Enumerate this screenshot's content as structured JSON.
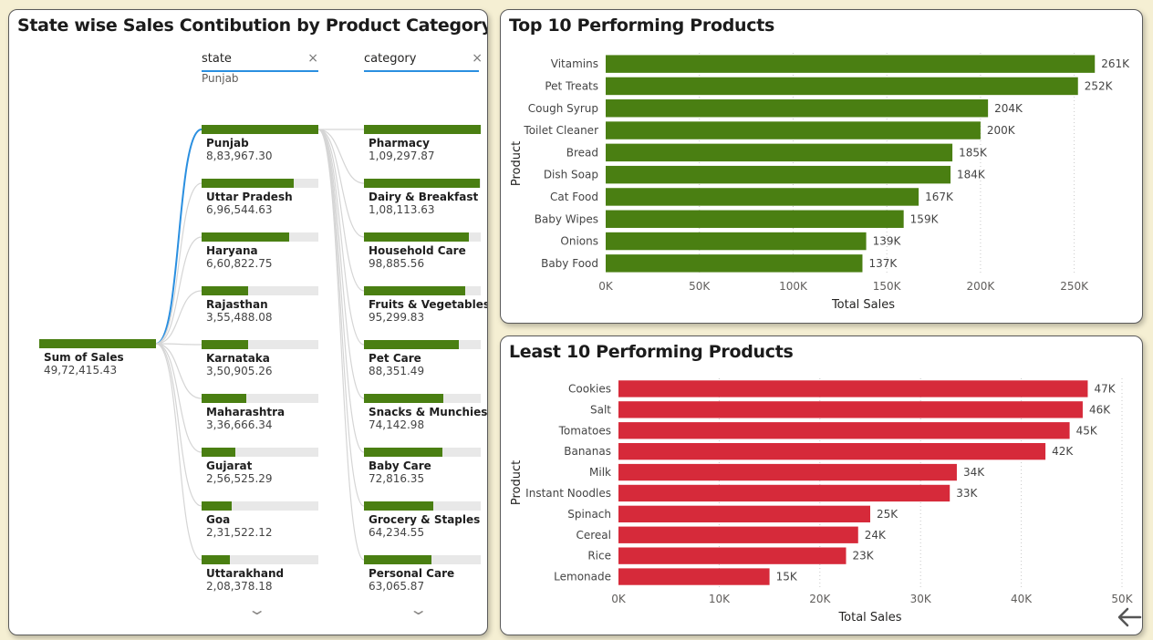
{
  "colors": {
    "top_bar": "#4a7f12",
    "least_bar": "#d62a3a",
    "decomp_bar": "#4a7f12",
    "link_active": "#2a8fe0",
    "link_inactive": "#d5d5d5"
  },
  "decomp": {
    "title": "State wise Sales Contibution by Product Category",
    "root": {
      "label": "Sum of Sales",
      "value": "49,72,415.43",
      "fraction": 1.0
    },
    "state_header": "state",
    "state_selected": "Punjab",
    "category_header": "category",
    "close_icon": "close-icon",
    "expand_icon": "chevron-down-icon",
    "states": [
      {
        "label": "Punjab",
        "value": "8,83,967.30",
        "fraction": 1.0
      },
      {
        "label": "Uttar Pradesh",
        "value": "6,96,544.63",
        "fraction": 0.79
      },
      {
        "label": "Haryana",
        "value": "6,60,822.75",
        "fraction": 0.75
      },
      {
        "label": "Rajasthan",
        "value": "3,55,488.08",
        "fraction": 0.4
      },
      {
        "label": "Karnataka",
        "value": "3,50,905.26",
        "fraction": 0.4
      },
      {
        "label": "Maharashtra",
        "value": "3,36,666.34",
        "fraction": 0.38
      },
      {
        "label": "Gujarat",
        "value": "2,56,525.29",
        "fraction": 0.29
      },
      {
        "label": "Goa",
        "value": "2,31,522.12",
        "fraction": 0.26
      },
      {
        "label": "Uttarakhand",
        "value": "2,08,378.18",
        "fraction": 0.24
      }
    ],
    "categories": [
      {
        "label": "Pharmacy",
        "value": "1,09,297.87",
        "fraction": 1.0
      },
      {
        "label": "Dairy & Breakfast",
        "value": "1,08,113.63",
        "fraction": 0.99
      },
      {
        "label": "Household Care",
        "value": "98,885.56",
        "fraction": 0.9
      },
      {
        "label": "Fruits & Vegetables",
        "value": "95,299.83",
        "fraction": 0.87
      },
      {
        "label": "Pet Care",
        "value": "88,351.49",
        "fraction": 0.81
      },
      {
        "label": "Snacks & Munchies",
        "value": "74,142.98",
        "fraction": 0.68
      },
      {
        "label": "Baby Care",
        "value": "72,816.35",
        "fraction": 0.67
      },
      {
        "label": "Grocery & Staples",
        "value": "64,234.55",
        "fraction": 0.59
      },
      {
        "label": "Personal Care",
        "value": "63,065.87",
        "fraction": 0.58
      }
    ]
  },
  "chart_data": [
    {
      "type": "bar",
      "orientation": "horizontal",
      "title": "Top 10 Performing Products",
      "xlabel": "Total Sales",
      "ylabel": "Product",
      "xlim": [
        0,
        275000
      ],
      "x_ticks": [
        0,
        50000,
        100000,
        150000,
        200000,
        250000
      ],
      "x_tick_labels": [
        "0K",
        "50K",
        "100K",
        "150K",
        "200K",
        "250K"
      ],
      "grid": "vertical dotted",
      "color": "#4a7f12",
      "categories": [
        "Vitamins",
        "Pet Treats",
        "Cough Syrup",
        "Toilet Cleaner",
        "Bread",
        "Dish Soap",
        "Cat Food",
        "Baby Wipes",
        "Onions",
        "Baby Food"
      ],
      "values": [
        261000,
        252000,
        204000,
        200000,
        185000,
        184000,
        167000,
        159000,
        139000,
        137000
      ],
      "data_labels": [
        "261K",
        "252K",
        "204K",
        "200K",
        "185K",
        "184K",
        "167K",
        "159K",
        "139K",
        "137K"
      ]
    },
    {
      "type": "bar",
      "orientation": "horizontal",
      "title": "Least 10 Performing Products",
      "xlabel": "Total Sales",
      "ylabel": "Product",
      "xlim": [
        0,
        50000
      ],
      "x_ticks": [
        0,
        10000,
        20000,
        30000,
        40000,
        50000
      ],
      "x_tick_labels": [
        "0K",
        "10K",
        "20K",
        "30K",
        "40K",
        "50K"
      ],
      "grid": "vertical dotted",
      "color": "#d62a3a",
      "categories": [
        "Cookies",
        "Salt",
        "Tomatoes",
        "Bananas",
        "Milk",
        "Instant Noodles",
        "Spinach",
        "Cereal",
        "Rice",
        "Lemonade"
      ],
      "values": [
        46600,
        46100,
        44800,
        42400,
        33600,
        32900,
        25000,
        23800,
        22600,
        15000
      ],
      "data_labels": [
        "47K",
        "46K",
        "45K",
        "42K",
        "34K",
        "33K",
        "25K",
        "24K",
        "23K",
        "15K"
      ]
    }
  ],
  "nav": {
    "back_icon": "back-arrow-icon"
  }
}
